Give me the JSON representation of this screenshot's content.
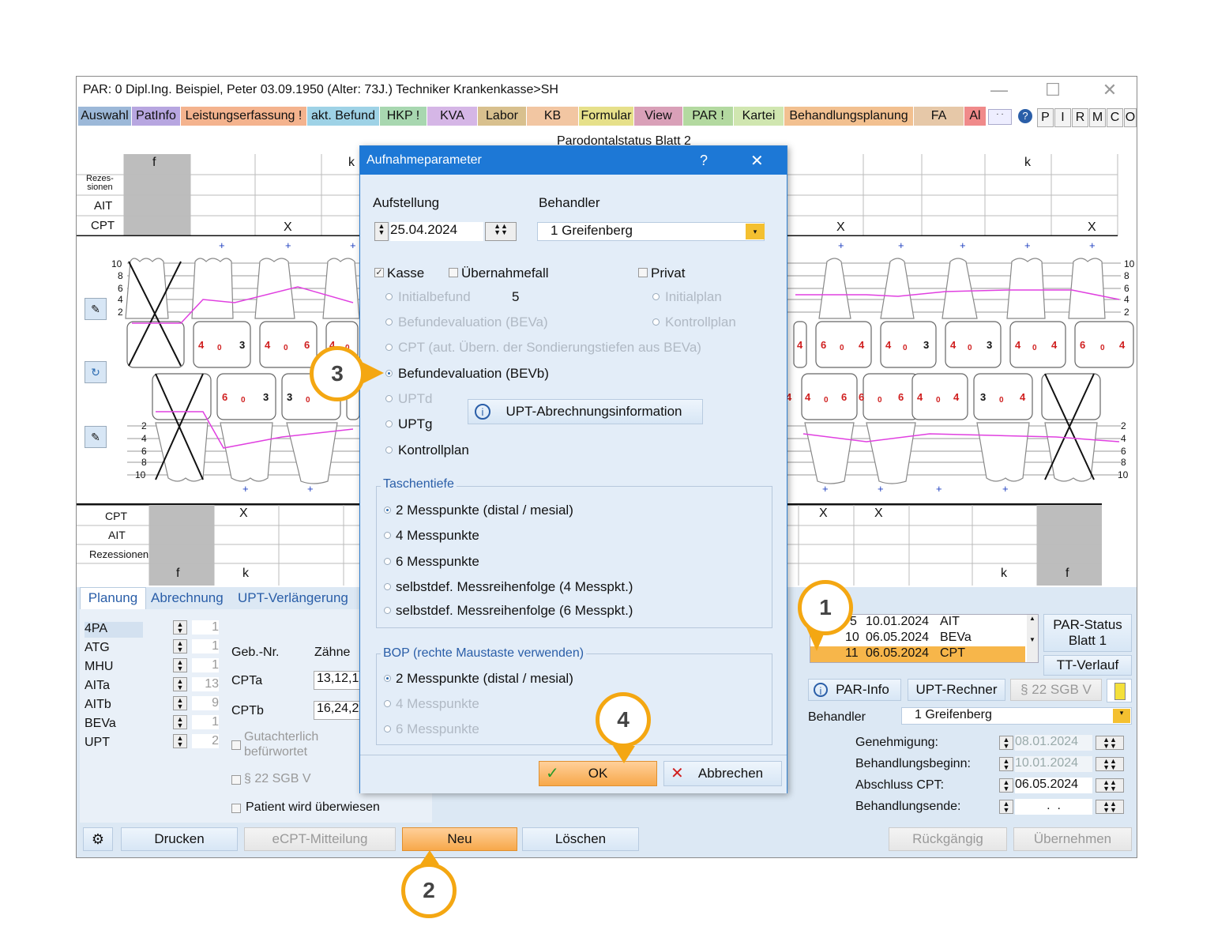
{
  "window": {
    "title": "PAR: 0  Dipl.Ing. Beispiel, Peter  03.09.1950 (Alter: 73J.)  Techniker Krankenkasse>SH",
    "controls": {
      "minimize": "—",
      "maximize": "☐",
      "close": "✕"
    }
  },
  "tabs": [
    {
      "label": "Auswahl",
      "color": "#9cb8d8"
    },
    {
      "label": "PatInfo",
      "color": "#b7a6e0"
    },
    {
      "label": "Leistungserfassung !",
      "color": "#f4b38e"
    },
    {
      "label": "akt. Befund",
      "color": "#9ed2e6"
    },
    {
      "label": "HKP !",
      "color": "#a8d7b0"
    },
    {
      "label": "KVA",
      "color": "#d5b6e6"
    },
    {
      "label": "Labor",
      "color": "#d8c08e"
    },
    {
      "label": "KB",
      "color": "#f2c6a2"
    },
    {
      "label": "Formular",
      "color": "#e6e08a"
    },
    {
      "label": "View",
      "color": "#d9a0b8"
    },
    {
      "label": "PAR !",
      "color": "#b3d9a0"
    },
    {
      "label": "Kartei",
      "color": "#d0e6b0"
    },
    {
      "label": "Behandlungsplanung",
      "color": "#f2c090"
    },
    {
      "label": "FA",
      "color": "#e6c8a8"
    },
    {
      "label": "Al",
      "color": "#f08a8a"
    }
  ],
  "right_buttons": [
    "P",
    "I",
    "R",
    "M",
    "C",
    "O"
  ],
  "chart": {
    "title": "Parodontalstatus Blatt 2",
    "upper_rows": [
      "Rezes-\nsionen",
      "AIT",
      "CPT"
    ],
    "upper_top_marks": {
      "f": "f",
      "k_left": "k",
      "k_right": "k"
    },
    "lower_rows": [
      "CPT",
      "AIT",
      "Rezessionen"
    ],
    "lower_bottom_marks": {
      "f_left": "f",
      "k_left": "k",
      "k_right": "k",
      "f_right": "f"
    },
    "scale_labels": [
      "10",
      "8",
      "6",
      "4",
      "2"
    ],
    "x_mark": "X",
    "plus_mark": "+",
    "tooth_values_upper_left": [
      "4 0 3",
      "4 0 6",
      "4 0 4"
    ],
    "tooth_values_upper_right": [
      "4",
      "6 0 4",
      "4 0 3",
      "4 0 3",
      "4 0 4",
      "6 0 4"
    ],
    "tooth_values_lower_left": [
      "6 0 3",
      "3 0"
    ],
    "tooth_values_lower_right": [
      "4",
      "4 0 6",
      "6 0 6",
      "4 0 4",
      "3 0 4"
    ]
  },
  "lower": {
    "tabs": [
      "Planung",
      "Abrechnung",
      "UPT-Verlängerung"
    ],
    "planning": [
      {
        "label": "4PA",
        "value": "1"
      },
      {
        "label": "ATG",
        "value": "1"
      },
      {
        "label": "MHU",
        "value": "1"
      },
      {
        "label": "AITa",
        "value": "13"
      },
      {
        "label": "AITb",
        "value": "9"
      },
      {
        "label": "BEVa",
        "value": "1"
      },
      {
        "label": "UPT",
        "value": "2"
      }
    ],
    "geb_header": "Geb.-Nr.",
    "zaehne_header": "Zähne",
    "geb_rows": [
      {
        "label": "CPTa",
        "value": "13,12,1"
      },
      {
        "label": "CPTb",
        "value": "16,24,2"
      }
    ],
    "gutachterlich": "Gutachterlich\nbefürwortet",
    "sgb": "§ 22 SGB V",
    "ueberwiesen": "Patient wird überwiesen",
    "history": [
      {
        "num": "5",
        "date": "10.01.2024",
        "type": "AIT"
      },
      {
        "num": "10",
        "date": "06.05.2024",
        "type": "BEVa"
      },
      {
        "num": "11",
        "date": "06.05.2024",
        "type": "CPT"
      }
    ],
    "par_status_btn": "PAR-Status\nBlatt 1",
    "tt_verlauf_btn": "TT-Verlauf",
    "par_info_btn": "PAR-Info",
    "upt_rechner_btn": "UPT-Rechner",
    "sgb_btn": "§ 22 SGB V",
    "behandler_label": "Behandler",
    "behandler_value": "1 Greifenberg",
    "dates": [
      {
        "label": "Genehmigung:",
        "value": "08.01.2024",
        "disabled": true
      },
      {
        "label": "Behandlungsbeginn:",
        "value": "10.01.2024",
        "disabled": true
      },
      {
        "label": "Abschluss CPT:",
        "value": "06.05.2024",
        "disabled": false
      },
      {
        "label": "Behandlungsende:",
        "value": " .  . ",
        "disabled": false
      }
    ]
  },
  "bottom_bar": {
    "drucken": "Drucken",
    "ecpt": "eCPT-Mitteilung",
    "neu": "Neu",
    "loeschen": "Löschen",
    "rueckgaengig": "Rückgängig",
    "uebernehmen": "Übernehmen"
  },
  "dialog": {
    "title": "Aufnahmeparameter",
    "help": "?",
    "close": "✕",
    "aufstellung_label": "Aufstellung",
    "aufstellung_value": "25.04.2024",
    "behandler_label": "Behandler",
    "behandler_value": "1 Greifenberg",
    "kasse": "Kasse",
    "uebernahmefall": "Übernahmefall",
    "privat": "Privat",
    "kasse_options": [
      {
        "label": "Initialbefund",
        "enabled": false,
        "selected": false
      },
      {
        "label": "Befundevaluation (BEVa)",
        "enabled": false,
        "selected": false
      },
      {
        "label": "CPT (aut. Übern. der Sondierungstiefen aus BEVa)",
        "enabled": false,
        "selected": false
      },
      {
        "label": "Befundevaluation (BEVb)",
        "enabled": true,
        "selected": true
      },
      {
        "label": "UPTd",
        "enabled": false,
        "selected": false
      },
      {
        "label": "UPTg",
        "enabled": true,
        "selected": false
      },
      {
        "label": "Kontrollplan",
        "enabled": true,
        "selected": false
      }
    ],
    "initial_count": "5",
    "privat_options": [
      "Initialplan",
      "Kontrollplan"
    ],
    "upt_info_btn": "UPT-Abrechnungsinformation",
    "taschentiefe_title": "Taschentiefe",
    "taschentiefe_options": [
      {
        "label": "2 Messpunkte (distal / mesial)",
        "selected": true
      },
      {
        "label": "4 Messpunkte",
        "selected": false
      },
      {
        "label": "6 Messpunkte",
        "selected": false
      },
      {
        "label": "selbstdef. Messreihenfolge (4 Messpkt.)",
        "selected": false
      },
      {
        "label": "selbstdef. Messreihenfolge (6 Messpkt.)",
        "selected": false
      }
    ],
    "bop_title": "BOP (rechte Maustaste verwenden)",
    "bop_options": [
      {
        "label": "2 Messpunkte (distal / mesial)",
        "selected": true,
        "enabled": true
      },
      {
        "label": "4 Messpunkte",
        "selected": false,
        "enabled": false
      },
      {
        "label": "6 Messpunkte",
        "selected": false,
        "enabled": false
      }
    ],
    "ok": "OK",
    "cancel": "Abbrechen"
  },
  "callouts": [
    "1",
    "2",
    "3",
    "4"
  ],
  "colors": {
    "accent": "#f4a712",
    "dialog_title": "#1d78d6",
    "selected_row": "#f7b64a",
    "perio_line": "#e040e0"
  }
}
